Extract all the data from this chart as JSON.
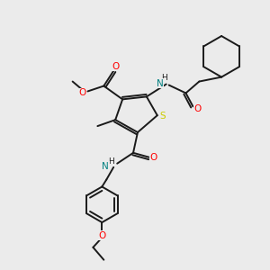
{
  "background_color": "#ebebeb",
  "bond_color": "#1a1a1a",
  "atom_colors": {
    "O": "#ff0000",
    "N": "#008080",
    "S": "#cccc00",
    "C": "#1a1a1a"
  },
  "lw": 1.4
}
